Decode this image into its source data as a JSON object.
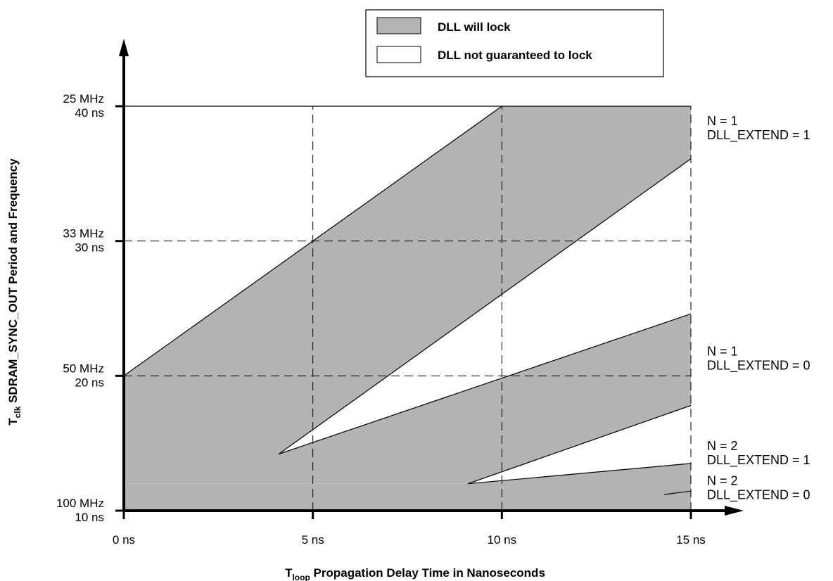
{
  "chart_data": {
    "type": "area",
    "xlabel": {
      "main": "T",
      "sub": "loop",
      "rest": " Propagation Delay Time in Nanoseconds"
    },
    "ylabel": {
      "main": "T",
      "sub": "clk",
      "rest": " SDRAM_SYNC_OUT Period and Frequency"
    },
    "xlim": [
      0,
      15
    ],
    "ylim": [
      10,
      40
    ],
    "x_ticks": [
      {
        "value": 0,
        "label": "0 ns"
      },
      {
        "value": 5,
        "label": "5 ns"
      },
      {
        "value": 10,
        "label": "10 ns"
      },
      {
        "value": 15,
        "label": "15 ns"
      }
    ],
    "y_ticks": [
      {
        "value": 40,
        "freq": "25 MHz",
        "period": "40 ns"
      },
      {
        "value": 30,
        "freq": "33 MHz",
        "period": "30 ns"
      },
      {
        "value": 20,
        "freq": "50 MHz",
        "period": "20 ns"
      },
      {
        "value": 10,
        "freq": "100 MHz",
        "period": "10 ns"
      }
    ],
    "grid": "dashed",
    "legend": {
      "position": "top-right",
      "items": [
        {
          "label": "DLL will lock",
          "color": "#b3b3b3"
        },
        {
          "label": "DLL not guaranteed to lock",
          "color": "#ffffff"
        }
      ]
    },
    "series": [
      {
        "name_lines": [
          "N = 1",
          "DLL_EXTEND = 1"
        ],
        "label_y": 38.6,
        "polygon": [
          [
            0,
            20
          ],
          [
            10,
            40
          ],
          [
            15,
            40
          ],
          [
            15,
            36.1
          ],
          [
            5,
            16
          ],
          [
            4.1,
            14.2
          ],
          [
            0,
            14.2
          ],
          [
            0,
            20
          ]
        ]
      },
      {
        "name_lines": [
          "N = 1",
          "DLL_EXTEND = 0"
        ],
        "label_y": 21.5,
        "polygon": [
          [
            0,
            14.2
          ],
          [
            4.1,
            14.2
          ],
          [
            15,
            24.6
          ],
          [
            15,
            17.8
          ],
          [
            9.1,
            12.0
          ],
          [
            0,
            12.0
          ]
        ]
      },
      {
        "name_lines": [
          "N = 2",
          "DLL_EXTEND = 1"
        ],
        "label_y": 14.5,
        "polygon": [
          [
            0,
            12.0
          ],
          [
            9.1,
            12.0
          ],
          [
            15,
            13.5
          ],
          [
            15,
            10
          ],
          [
            0,
            10
          ]
        ]
      },
      {
        "name_lines": [
          "N = 2",
          "DLL_EXTEND = 0"
        ],
        "label_y": 11.9,
        "polygon": [
          [
            14.5,
            11.2
          ],
          [
            15,
            11.45
          ],
          [
            15,
            10
          ],
          [
            14.5,
            10
          ]
        ]
      }
    ],
    "boundary_lines": [
      [
        [
          0,
          20
        ],
        [
          10,
          40
        ],
        [
          15,
          40
        ]
      ],
      [
        [
          4.1,
          14.2
        ],
        [
          15,
          36.1
        ]
      ],
      [
        [
          4.1,
          14.2
        ],
        [
          15,
          24.6
        ]
      ],
      [
        [
          9.1,
          12.0
        ],
        [
          15,
          17.8
        ]
      ],
      [
        [
          9.1,
          12.0
        ],
        [
          15,
          13.5
        ]
      ],
      [
        [
          14.3,
          11.2
        ],
        [
          15,
          11.45
        ]
      ],
      [
        [
          0,
          40
        ],
        [
          10,
          40
        ]
      ]
    ],
    "fill_color": "#b3b3b3"
  }
}
